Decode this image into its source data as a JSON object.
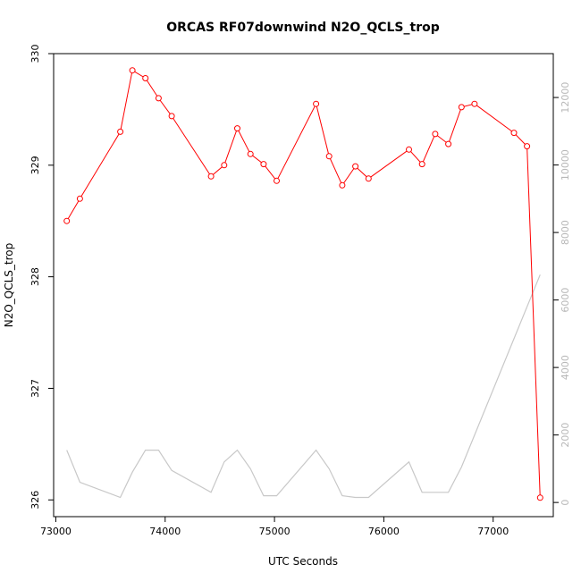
{
  "chart_data": {
    "type": "line",
    "title": "ORCAS RF07downwind N2O_QCLS_trop",
    "xlabel": "UTC Seconds",
    "ylabel": "N2O_QCLS_trop",
    "xlim": [
      72980,
      77550
    ],
    "ylim": [
      325.85,
      330.0
    ],
    "y2lim": [
      -420,
      13300
    ],
    "x_ticks": [
      73000,
      74000,
      75000,
      76000,
      77000
    ],
    "y_ticks": [
      326,
      327,
      328,
      329,
      330
    ],
    "y2_ticks": [
      0,
      2000,
      4000,
      6000,
      8000,
      10000,
      12000
    ],
    "grid": false,
    "series": [
      {
        "role": "primary",
        "color": "#ff0000",
        "marker": "open-circle",
        "x": [
          73100,
          73220,
          73590,
          73700,
          73820,
          73940,
          74060,
          74420,
          74540,
          74660,
          74780,
          74900,
          75020,
          75380,
          75500,
          75620,
          75740,
          75860,
          76230,
          76350,
          76470,
          76590,
          76710,
          76830,
          77190,
          77310,
          77430
        ],
        "y": [
          328.5,
          328.7,
          329.3,
          329.85,
          329.78,
          329.6,
          329.44,
          328.9,
          329.0,
          329.33,
          329.1,
          329.01,
          328.86,
          329.55,
          329.08,
          328.82,
          328.99,
          328.88,
          329.14,
          329.01,
          329.28,
          329.19,
          329.52,
          329.55,
          329.29,
          329.17,
          326.02
        ]
      },
      {
        "role": "secondary",
        "color": "#c8c8c8",
        "x": [
          73100,
          73220,
          73590,
          73700,
          73820,
          73940,
          74060,
          74420,
          74540,
          74660,
          74780,
          74900,
          75020,
          75380,
          75500,
          75620,
          75740,
          75860,
          76230,
          76350,
          76470,
          76590,
          76710,
          77430
        ],
        "y": [
          1550,
          600,
          150,
          900,
          1550,
          1550,
          950,
          300,
          1200,
          1550,
          1000,
          200,
          200,
          1550,
          1000,
          200,
          150,
          150,
          1200,
          300,
          300,
          300,
          1050,
          6750
        ]
      }
    ]
  }
}
